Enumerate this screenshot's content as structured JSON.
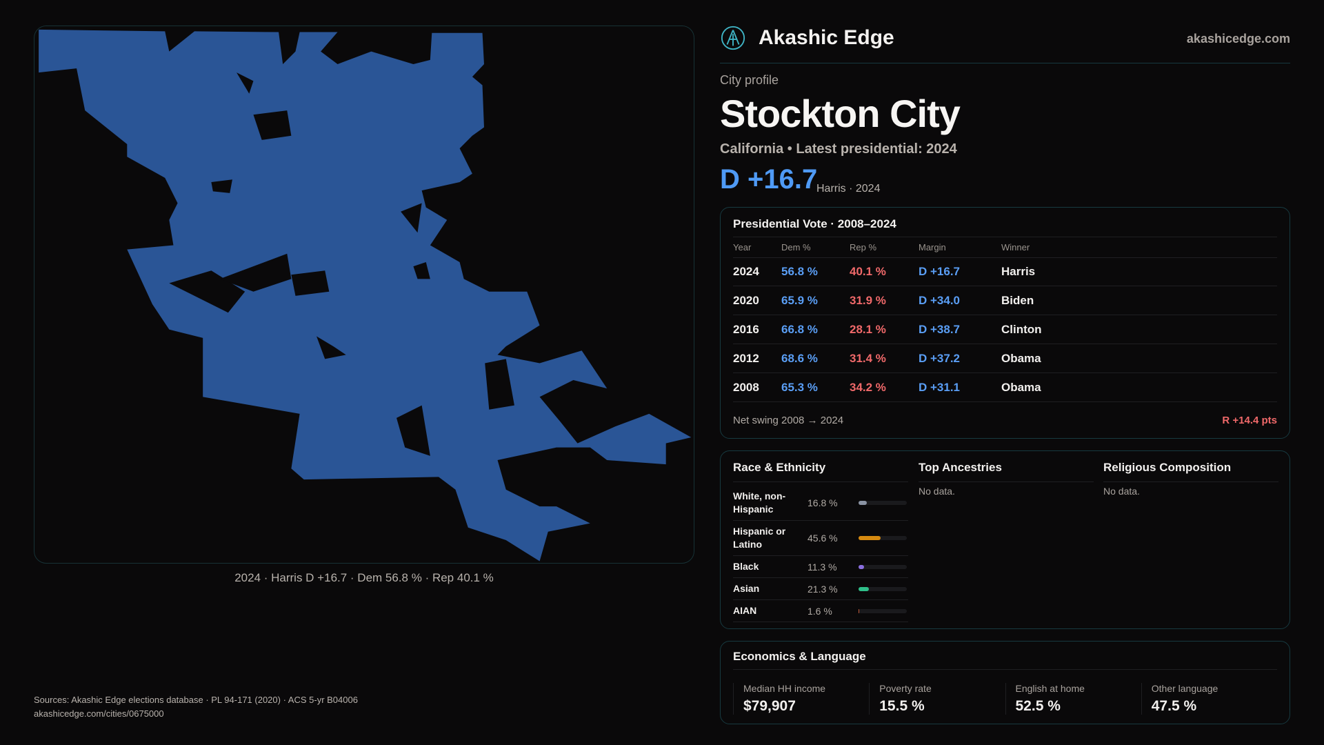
{
  "brand": {
    "name": "Akashic Edge",
    "site": "akashicedge.com"
  },
  "profile": {
    "kicker": "City profile",
    "title": "Stockton City",
    "subtitle": "California • Latest presidential: 2024",
    "margin": "D +16.7",
    "margin_sub": "Harris · 2024"
  },
  "map": {
    "caption": "2024 · Harris D +16.7 · Dem 56.8 % · Rep 40.1 %",
    "fill_color": "#2a5596"
  },
  "vote": {
    "title": "Presidential Vote · 2008–2024",
    "headers": [
      "Year",
      "Dem %",
      "Rep %",
      "Margin",
      "Winner"
    ],
    "rows": [
      {
        "year": "2024",
        "dem": "56.8 %",
        "rep": "40.1 %",
        "margin": "D +16.7",
        "winner": "Harris"
      },
      {
        "year": "2020",
        "dem": "65.9 %",
        "rep": "31.9 %",
        "margin": "D +34.0",
        "winner": "Biden"
      },
      {
        "year": "2016",
        "dem": "66.8 %",
        "rep": "28.1 %",
        "margin": "D +38.7",
        "winner": "Clinton"
      },
      {
        "year": "2012",
        "dem": "68.6 %",
        "rep": "31.4 %",
        "margin": "D +37.2",
        "winner": "Obama"
      },
      {
        "year": "2008",
        "dem": "65.3 %",
        "rep": "34.2 %",
        "margin": "D +31.1",
        "winner": "Obama"
      }
    ],
    "swing_label": "Net swing 2008 → 2024",
    "swing_value": "R +14.4 pts"
  },
  "race": {
    "title": "Race & Ethnicity",
    "rows": [
      {
        "label": "White, non-Hispanic",
        "pct": "16.8 %",
        "value": 16.8,
        "color": "#8a93a3"
      },
      {
        "label": "Hispanic or Latino",
        "pct": "45.6 %",
        "value": 45.6,
        "color": "#d68a10"
      },
      {
        "label": "Black",
        "pct": "11.3 %",
        "value": 11.3,
        "color": "#8b6fe0"
      },
      {
        "label": "Asian",
        "pct": "21.3 %",
        "value": 21.3,
        "color": "#2fbf8a"
      },
      {
        "label": "AIAN",
        "pct": "1.6 %",
        "value": 1.6,
        "color": "#c05a3a"
      }
    ]
  },
  "ancestries": {
    "title": "Top Ancestries",
    "empty": "No data."
  },
  "religion": {
    "title": "Religious Composition",
    "empty": "No data."
  },
  "econ": {
    "title": "Economics & Language",
    "stats": [
      {
        "label": "Median HH income",
        "value": "$79,907"
      },
      {
        "label": "Poverty rate",
        "value": "15.5 %"
      },
      {
        "label": "English at home",
        "value": "52.5 %"
      },
      {
        "label": "Other language",
        "value": "47.5 %"
      }
    ]
  },
  "footer": {
    "sources": "Sources: Akashic Edge elections database · PL 94-171 (2020) · ACS 5-yr B04006",
    "url": "akashicedge.com/cities/0675000"
  }
}
